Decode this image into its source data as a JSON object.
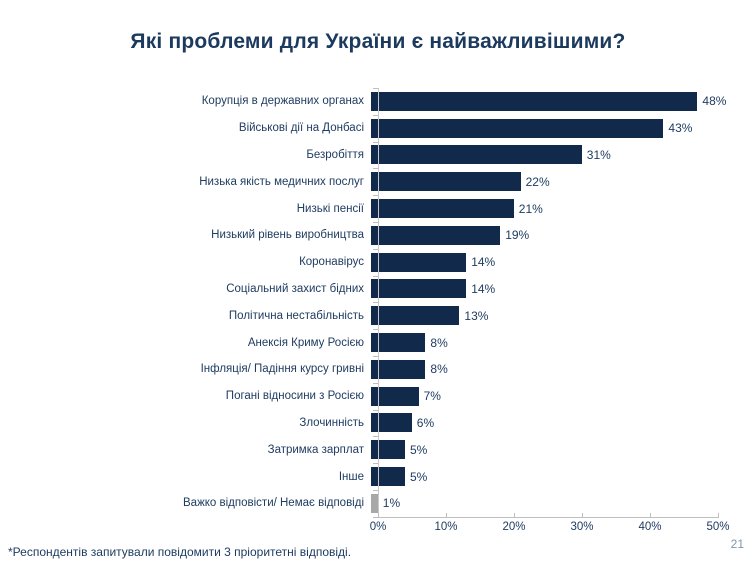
{
  "title": "Які проблеми для України є найважливішими?",
  "footnote": "*Респондентів запитували повідомити 3 пріоритетні відповіді.",
  "page_number": "21",
  "colors": {
    "bar": "#11294a",
    "bar_muted": "#a8a8a8",
    "title_text": "#1b3a5e",
    "label_text": "#1f3c61",
    "axis": "#bfbfbf",
    "page_number": "#8495ab"
  },
  "chart_data": {
    "type": "bar",
    "orientation": "horizontal",
    "title": "Які проблеми для України є найважливішими?",
    "xlabel": "",
    "ylabel": "",
    "xlim": [
      0,
      50
    ],
    "grid": false,
    "legend": "none",
    "categories": [
      "Корупція в державних органах",
      "Військові дії на Донбасі",
      "Безробіття",
      "Низька якість медичних послуг",
      "Низькі пенсії",
      "Низький рівень виробництва",
      "Коронавірус",
      "Соціальний захист бідних",
      "Політична нестабільність",
      "Анексія Криму Росією",
      "Інфляція/ Падіння курсу гривні",
      "Погані відносини з Росією",
      "Злочинність",
      "Затримка зарплат",
      "Інше",
      "Важко відповісти/ Немає відповіді"
    ],
    "values": [
      48,
      43,
      31,
      22,
      21,
      19,
      14,
      14,
      13,
      8,
      8,
      7,
      6,
      5,
      5,
      1
    ],
    "value_labels": [
      "48%",
      "43%",
      "31%",
      "22%",
      "21%",
      "19%",
      "14%",
      "14%",
      "13%",
      "8%",
      "8%",
      "7%",
      "6%",
      "5%",
      "5%",
      "1%"
    ],
    "x_ticks": [
      "0%",
      "10%",
      "20%",
      "30%",
      "40%",
      "50%"
    ],
    "x_tick_values": [
      0,
      10,
      20,
      30,
      40,
      50
    ],
    "muted_last_bar": true
  }
}
